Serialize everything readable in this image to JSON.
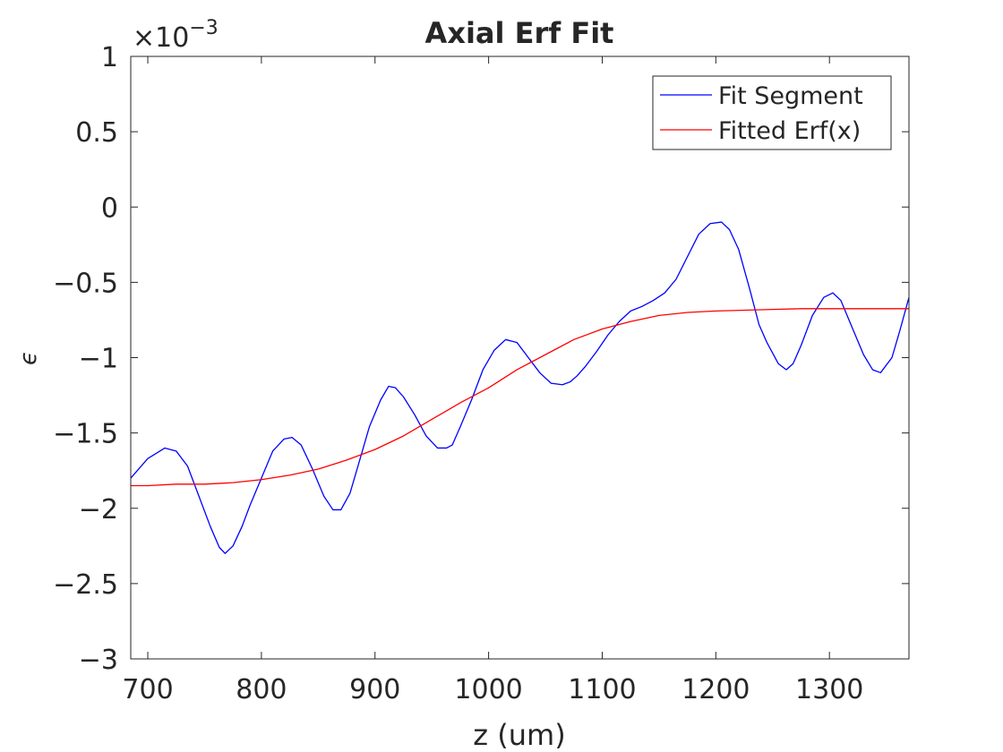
{
  "chart_data": {
    "type": "line",
    "title": "Axial Erf Fit",
    "xlabel": "z (um)",
    "ylabel": "ϵ",
    "exponent_label": "×10",
    "exponent_power": "−3",
    "xlim": [
      685,
      1370
    ],
    "ylim": [
      -3,
      1
    ],
    "xticks": [
      700,
      800,
      900,
      1000,
      1100,
      1200,
      1300
    ],
    "xtick_labels": [
      "700",
      "800",
      "900",
      "1000",
      "1100",
      "1200",
      "1300"
    ],
    "yticks": [
      1,
      0.5,
      0,
      -0.5,
      -1,
      -1.5,
      -2,
      -2.5,
      -3
    ],
    "ytick_labels": [
      "1",
      "0.5",
      "0",
      "−0.5",
      "−1",
      "−1.5",
      "−2",
      "−2.5",
      "−3"
    ],
    "grid": false,
    "legend_position": "top-right",
    "colors": {
      "Fit Segment": "#0000ff",
      "Fitted Erf(x)": "#ff0000",
      "axes": "#262626"
    },
    "series": [
      {
        "name": "Fit Segment",
        "x": [
          685,
          700,
          715,
          725,
          735,
          745,
          755,
          763,
          768,
          775,
          783,
          790,
          800,
          810,
          820,
          827,
          835,
          845,
          855,
          863,
          870,
          878,
          885,
          895,
          905,
          912,
          918,
          925,
          935,
          945,
          955,
          963,
          968,
          975,
          985,
          995,
          1005,
          1015,
          1025,
          1035,
          1045,
          1055,
          1065,
          1072,
          1078,
          1085,
          1095,
          1105,
          1115,
          1125,
          1135,
          1145,
          1155,
          1165,
          1175,
          1185,
          1195,
          1205,
          1212,
          1220,
          1230,
          1238,
          1245,
          1255,
          1262,
          1268,
          1275,
          1285,
          1295,
          1303,
          1310,
          1320,
          1330,
          1338,
          1345,
          1355,
          1362,
          1370
        ],
        "y": [
          -1.8,
          -1.67,
          -1.6,
          -1.62,
          -1.72,
          -1.92,
          -2.12,
          -2.26,
          -2.3,
          -2.25,
          -2.12,
          -1.98,
          -1.8,
          -1.62,
          -1.54,
          -1.53,
          -1.58,
          -1.74,
          -1.92,
          -2.01,
          -2.01,
          -1.9,
          -1.72,
          -1.46,
          -1.28,
          -1.19,
          -1.2,
          -1.26,
          -1.38,
          -1.52,
          -1.6,
          -1.6,
          -1.58,
          -1.46,
          -1.28,
          -1.08,
          -0.95,
          -0.88,
          -0.9,
          -1.0,
          -1.1,
          -1.17,
          -1.18,
          -1.16,
          -1.12,
          -1.06,
          -0.96,
          -0.85,
          -0.76,
          -0.69,
          -0.66,
          -0.62,
          -0.57,
          -0.48,
          -0.33,
          -0.18,
          -0.11,
          -0.1,
          -0.15,
          -0.28,
          -0.55,
          -0.78,
          -0.9,
          -1.04,
          -1.08,
          -1.04,
          -0.92,
          -0.72,
          -0.6,
          -0.57,
          -0.62,
          -0.8,
          -0.98,
          -1.08,
          -1.1,
          -1.0,
          -0.82,
          -0.6
        ]
      },
      {
        "name": "Fitted Erf(x)",
        "x": [
          685,
          700,
          725,
          750,
          775,
          800,
          825,
          850,
          875,
          900,
          925,
          950,
          975,
          1000,
          1025,
          1050,
          1075,
          1100,
          1125,
          1150,
          1175,
          1200,
          1225,
          1250,
          1275,
          1300,
          1325,
          1350,
          1370
        ],
        "y": [
          -1.85,
          -1.85,
          -1.84,
          -1.84,
          -1.83,
          -1.81,
          -1.78,
          -1.74,
          -1.68,
          -1.61,
          -1.52,
          -1.41,
          -1.3,
          -1.2,
          -1.08,
          -0.98,
          -0.88,
          -0.81,
          -0.76,
          -0.72,
          -0.7,
          -0.69,
          -0.685,
          -0.68,
          -0.675,
          -0.675,
          -0.675,
          -0.675,
          -0.675
        ]
      }
    ]
  }
}
